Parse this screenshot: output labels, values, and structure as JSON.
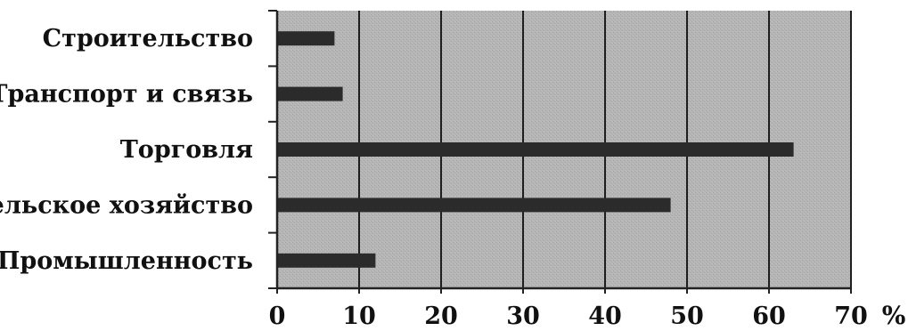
{
  "chart_data": {
    "type": "bar",
    "orientation": "horizontal",
    "categories": [
      "Строительство",
      "Транспорт и связь",
      "Торговля",
      "Сельское хозяйство",
      "Промышленность"
    ],
    "values": [
      7,
      8,
      63,
      48,
      12
    ],
    "xticks": [
      "0",
      "10",
      "20",
      "30",
      "40",
      "50",
      "60",
      "70"
    ],
    "xunit": "%",
    "xlim": [
      0,
      70
    ],
    "grid": true,
    "legend": "none",
    "colors": {
      "plot_background": "#b3b3b3",
      "bar": "#2b2b2b",
      "gridline": "#1e1e1e",
      "axis": "#222222"
    }
  }
}
